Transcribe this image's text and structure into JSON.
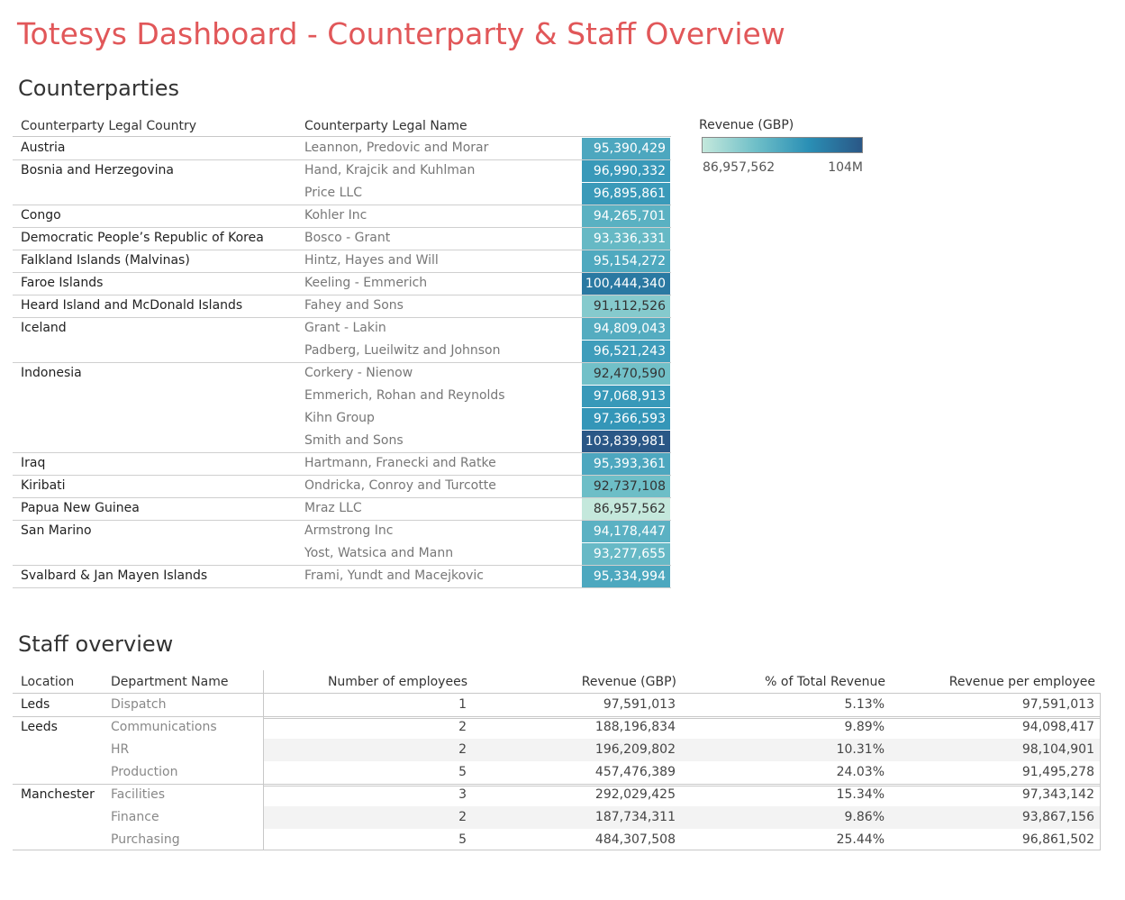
{
  "page": {
    "title": "Totesys Dashboard - Counterparty & Staff Overview"
  },
  "counterparties": {
    "section_title": "Counterparties",
    "headers": {
      "country": "Counterparty Legal Country",
      "name": "Counterparty Legal Name"
    },
    "legend": {
      "title": "Revenue (GBP)",
      "min_label": "86,957,562",
      "max_label": "104M",
      "colors": [
        "#c4e8dc",
        "#6fbfc8",
        "#2a8fb5",
        "#2a5786"
      ]
    },
    "rows": [
      {
        "country": "Austria",
        "name": "Leannon, Predovic and Morar",
        "revenue_label": "95,390,429"
      },
      {
        "country": "Bosnia and Herzegovina",
        "name": "Hand, Krajcik and Kuhlman",
        "revenue_label": "96,990,332"
      },
      {
        "country": "",
        "name": "Price LLC",
        "revenue_label": "96,895,861"
      },
      {
        "country": "Congo",
        "name": "Kohler Inc",
        "revenue_label": "94,265,701"
      },
      {
        "country": "Democratic People’s Republic of Korea",
        "name": "Bosco - Grant",
        "revenue_label": "93,336,331"
      },
      {
        "country": "Falkland Islands (Malvinas)",
        "name": "Hintz, Hayes and Will",
        "revenue_label": "95,154,272"
      },
      {
        "country": "Faroe Islands",
        "name": "Keeling - Emmerich",
        "revenue_label": "100,444,340"
      },
      {
        "country": "Heard Island and McDonald Islands",
        "name": "Fahey and Sons",
        "revenue_label": "91,112,526"
      },
      {
        "country": "Iceland",
        "name": "Grant - Lakin",
        "revenue_label": "94,809,043"
      },
      {
        "country": "",
        "name": "Padberg, Lueilwitz and Johnson",
        "revenue_label": "96,521,243"
      },
      {
        "country": "Indonesia",
        "name": "Corkery - Nienow",
        "revenue_label": "92,470,590"
      },
      {
        "country": "",
        "name": "Emmerich, Rohan and Reynolds",
        "revenue_label": "97,068,913"
      },
      {
        "country": "",
        "name": "Kihn Group",
        "revenue_label": "97,366,593"
      },
      {
        "country": "",
        "name": "Smith and Sons",
        "revenue_label": "103,839,981"
      },
      {
        "country": "Iraq",
        "name": "Hartmann, Franecki and Ratke",
        "revenue_label": "95,393,361"
      },
      {
        "country": "Kiribati",
        "name": "Ondricka, Conroy and Turcotte",
        "revenue_label": "92,737,108"
      },
      {
        "country": "Papua New Guinea",
        "name": "Mraz LLC",
        "revenue_label": "86,957,562"
      },
      {
        "country": "San Marino",
        "name": "Armstrong Inc",
        "revenue_label": "94,178,447"
      },
      {
        "country": "",
        "name": "Yost, Watsica and Mann",
        "revenue_label": "93,277,655"
      },
      {
        "country": "Svalbard & Jan Mayen Islands",
        "name": "Frami, Yundt and Macejkovic",
        "revenue_label": "95,334,994"
      }
    ]
  },
  "staff": {
    "section_title": "Staff overview",
    "headers": {
      "location": "Location",
      "department": "Department Name",
      "employees": "Number of employees",
      "revenue": "Revenue (GBP)",
      "pct": "% of Total Revenue",
      "per_employee": "Revenue per employee"
    },
    "rows": [
      {
        "location": "Leds",
        "department": "Dispatch",
        "employees": "1",
        "revenue": "97,591,013",
        "pct": "5.13%",
        "per_employee": "97,591,013"
      },
      {
        "location": "Leeds",
        "department": "Communications",
        "employees": "2",
        "revenue": "188,196,834",
        "pct": "9.89%",
        "per_employee": "94,098,417"
      },
      {
        "location": "",
        "department": "HR",
        "employees": "2",
        "revenue": "196,209,802",
        "pct": "10.31%",
        "per_employee": "98,104,901"
      },
      {
        "location": "",
        "department": "Production",
        "employees": "5",
        "revenue": "457,476,389",
        "pct": "24.03%",
        "per_employee": "91,495,278"
      },
      {
        "location": "Manchester",
        "department": "Facilities",
        "employees": "3",
        "revenue": "292,029,425",
        "pct": "15.34%",
        "per_employee": "97,343,142"
      },
      {
        "location": "",
        "department": "Finance",
        "employees": "2",
        "revenue": "187,734,311",
        "pct": "9.86%",
        "per_employee": "93,867,156"
      },
      {
        "location": "",
        "department": "Purchasing",
        "employees": "5",
        "revenue": "484,307,508",
        "pct": "25.44%",
        "per_employee": "96,861,502"
      }
    ]
  },
  "chart_data": [
    {
      "type": "heatmap",
      "title": "Counterparties",
      "legend_title": "Revenue (GBP)",
      "color_range": [
        86957562,
        103839981
      ],
      "categories": [
        "Leannon, Predovic and Morar",
        "Hand, Krajcik and Kuhlman",
        "Price LLC",
        "Kohler Inc",
        "Bosco - Grant",
        "Hintz, Hayes and Will",
        "Keeling - Emmerich",
        "Fahey and Sons",
        "Grant - Lakin",
        "Padberg, Lueilwitz and Johnson",
        "Corkery - Nienow",
        "Emmerich, Rohan and Reynolds",
        "Kihn Group",
        "Smith and Sons",
        "Hartmann, Franecki and Ratke",
        "Ondricka, Conroy and Turcotte",
        "Mraz LLC",
        "Armstrong Inc",
        "Yost, Watsica and Mann",
        "Frami, Yundt and Macejkovic"
      ],
      "values": [
        95390429,
        96990332,
        96895861,
        94265701,
        93336331,
        95154272,
        100444340,
        91112526,
        94809043,
        96521243,
        92470590,
        97068913,
        97366593,
        103839981,
        95393361,
        92737108,
        86957562,
        94178447,
        93277655,
        95334994
      ]
    },
    {
      "type": "table",
      "title": "Staff overview",
      "columns": [
        "Location",
        "Department Name",
        "Number of employees",
        "Revenue (GBP)",
        "% of Total Revenue",
        "Revenue per employee"
      ],
      "rows": [
        [
          "Leds",
          "Dispatch",
          1,
          97591013,
          "5.13%",
          97591013
        ],
        [
          "Leeds",
          "Communications",
          2,
          188196834,
          "9.89%",
          94098417
        ],
        [
          "Leeds",
          "HR",
          2,
          196209802,
          "10.31%",
          98104901
        ],
        [
          "Leeds",
          "Production",
          5,
          457476389,
          "24.03%",
          91495278
        ],
        [
          "Manchester",
          "Facilities",
          3,
          292029425,
          "15.34%",
          97343142
        ],
        [
          "Manchester",
          "Finance",
          2,
          187734311,
          "9.86%",
          93867156
        ],
        [
          "Manchester",
          "Purchasing",
          5,
          484307508,
          "25.44%",
          96861502
        ]
      ]
    }
  ]
}
